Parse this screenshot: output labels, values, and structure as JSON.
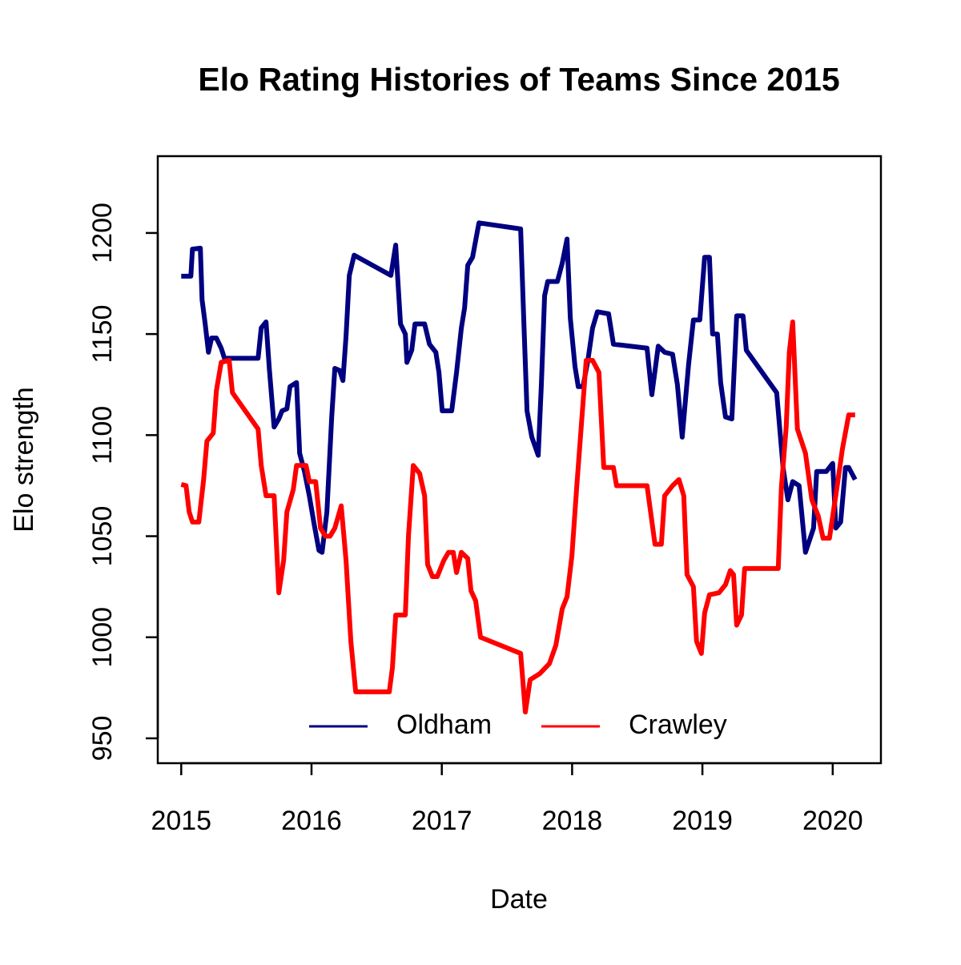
{
  "chart_data": {
    "type": "line",
    "title": "Elo Rating Histories of Teams Since 2015",
    "x_label": "Date",
    "y_label": "Elo strength",
    "xlim": [
      2014.82,
      2020.37
    ],
    "xticks": [
      2015,
      2016,
      2017,
      2018,
      2019,
      2020
    ],
    "ylim": [
      937.7,
      1238
    ],
    "yticks": [
      950,
      1000,
      1050,
      1100,
      1150,
      1200
    ],
    "legend": "bottom",
    "grid": false,
    "series": [
      {
        "name": "Oldham",
        "color": "#000080",
        "x": [
          2015.0,
          2015.074,
          2015.086,
          2015.147,
          2015.16,
          2015.184,
          2015.209,
          2015.233,
          2015.27,
          2015.307,
          2015.332,
          2015.59,
          2015.614,
          2015.651,
          2015.676,
          2015.713,
          2015.749,
          2015.774,
          2015.811,
          2015.835,
          2015.885,
          2015.909,
          2015.946,
          2015.983,
          2016.02,
          2016.057,
          2016.081,
          2016.118,
          2016.155,
          2016.179,
          2016.216,
          2016.241,
          2016.265,
          2016.29,
          2016.327,
          2016.609,
          2016.646,
          2016.683,
          2016.72,
          2016.732,
          2016.769,
          2016.794,
          2016.868,
          2016.905,
          2016.954,
          2016.978,
          2017.003,
          2017.076,
          2017.113,
          2017.15,
          2017.175,
          2017.199,
          2017.236,
          2017.285,
          2017.605,
          2017.629,
          2017.654,
          2017.691,
          2017.74,
          2017.764,
          2017.789,
          2017.813,
          2017.887,
          2017.924,
          2017.961,
          2017.986,
          2018.022,
          2018.047,
          2018.084,
          2018.121,
          2018.157,
          2018.194,
          2018.28,
          2018.317,
          2018.575,
          2018.612,
          2018.661,
          2018.71,
          2018.771,
          2018.808,
          2018.845,
          2018.894,
          2018.931,
          2018.98,
          2019.017,
          2019.054,
          2019.078,
          2019.115,
          2019.14,
          2019.177,
          2019.226,
          2019.263,
          2019.312,
          2019.337,
          2019.57,
          2019.619,
          2019.656,
          2019.693,
          2019.742,
          2019.791,
          2019.853,
          2019.877,
          2019.951,
          2020.0,
          2020.024,
          2020.061,
          2020.098,
          2020.123,
          2020.172
        ],
        "values": [
          1178.6,
          1178.6,
          1192,
          1192.5,
          1167,
          1155,
          1141,
          1148,
          1148,
          1143,
          1138,
          1138,
          1153,
          1156,
          1133,
          1104,
          1108,
          1112,
          1113,
          1124,
          1126,
          1091,
          1082,
          1070,
          1056,
          1043,
          1042,
          1062,
          1109,
          1133,
          1132,
          1127,
          1149,
          1179,
          1189,
          1179,
          1194,
          1155,
          1150,
          1136,
          1142,
          1155,
          1155,
          1145,
          1141,
          1131,
          1112,
          1112,
          1131,
          1153,
          1163,
          1184,
          1188,
          1205,
          1202,
          1157,
          1112,
          1099,
          1090,
          1125,
          1169,
          1176,
          1176,
          1185,
          1197,
          1158,
          1134,
          1124,
          1124,
          1137,
          1153,
          1161,
          1160,
          1145,
          1143,
          1120,
          1144,
          1141,
          1140,
          1125,
          1099,
          1135,
          1157,
          1157,
          1188,
          1188,
          1150,
          1150,
          1126,
          1109,
          1108,
          1159,
          1159,
          1142,
          1121,
          1084,
          1068,
          1077,
          1075,
          1042,
          1054,
          1082,
          1082,
          1086,
          1054,
          1057,
          1084,
          1084,
          1078
        ]
      },
      {
        "name": "Crawley",
        "color": "#ff0000",
        "x": [
          2015.0,
          2015.037,
          2015.061,
          2015.086,
          2015.135,
          2015.172,
          2015.197,
          2015.246,
          2015.27,
          2015.307,
          2015.368,
          2015.393,
          2015.59,
          2015.614,
          2015.651,
          2015.713,
          2015.749,
          2015.786,
          2015.811,
          2015.86,
          2015.885,
          2015.958,
          2015.983,
          2016.032,
          2016.069,
          2016.106,
          2016.142,
          2016.179,
          2016.228,
          2016.265,
          2016.302,
          2016.339,
          2016.597,
          2016.621,
          2016.646,
          2016.72,
          2016.744,
          2016.781,
          2016.83,
          2016.868,
          2016.891,
          2016.928,
          2016.965,
          2017.015,
          2017.051,
          2017.088,
          2017.113,
          2017.15,
          2017.199,
          2017.224,
          2017.26,
          2017.297,
          2017.605,
          2017.641,
          2017.678,
          2017.752,
          2017.826,
          2017.875,
          2017.924,
          2017.961,
          2017.998,
          2018.035,
          2018.071,
          2018.108,
          2018.157,
          2018.206,
          2018.243,
          2018.317,
          2018.341,
          2018.575,
          2018.636,
          2018.685,
          2018.71,
          2018.771,
          2018.82,
          2018.857,
          2018.882,
          2018.931,
          2018.955,
          2018.992,
          2019.017,
          2019.054,
          2019.127,
          2019.177,
          2019.214,
          2019.239,
          2019.263,
          2019.3,
          2019.324,
          2019.582,
          2019.606,
          2019.643,
          2019.667,
          2019.693,
          2019.729,
          2019.791,
          2019.84,
          2019.889,
          2019.926,
          2019.975,
          2020.037,
          2020.074,
          2020.123,
          2020.172
        ],
        "values": [
          1075.6,
          1075,
          1062,
          1057,
          1057,
          1078,
          1097,
          1101,
          1122,
          1136,
          1137,
          1121,
          1103,
          1085,
          1070,
          1070,
          1022,
          1038,
          1062,
          1073,
          1085,
          1085,
          1077,
          1077,
          1054,
          1050,
          1050,
          1054,
          1065,
          1038,
          998,
          973,
          973,
          985,
          1011,
          1011,
          1050,
          1085,
          1081,
          1070,
          1036,
          1030,
          1030,
          1038,
          1042,
          1042,
          1032,
          1042,
          1039,
          1023,
          1018,
          1000,
          992,
          963,
          979,
          982,
          987,
          996,
          1014,
          1020,
          1040,
          1074,
          1105,
          1137,
          1137,
          1131,
          1084,
          1084,
          1075,
          1075,
          1046,
          1046,
          1070,
          1075,
          1078,
          1070,
          1031,
          1025,
          998,
          992,
          1012,
          1021,
          1022,
          1026,
          1033,
          1031,
          1006,
          1011,
          1034,
          1034,
          1074,
          1104,
          1141,
          1156,
          1103,
          1091,
          1068,
          1060,
          1049,
          1049,
          1076,
          1093,
          1110,
          1110
        ]
      }
    ]
  }
}
